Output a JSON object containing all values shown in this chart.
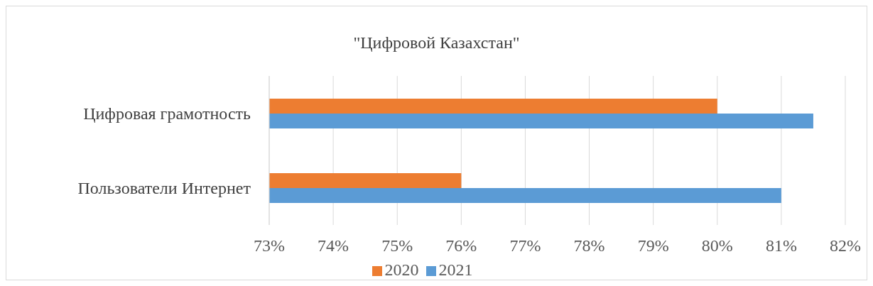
{
  "chart_data": {
    "type": "bar",
    "orientation": "horizontal",
    "title": "\"Цифровой Казахстан\"",
    "categories": [
      "Цифровая грамотность",
      "Пользователи Интернет"
    ],
    "series": [
      {
        "name": "2020",
        "color": "#ed7d31",
        "values": [
          80,
          76
        ]
      },
      {
        "name": "2021",
        "color": "#5b9bd5",
        "values": [
          81.5,
          81
        ]
      }
    ],
    "xlim": [
      73,
      82
    ],
    "xticks": [
      {
        "value": 73,
        "label": "73%"
      },
      {
        "value": 74,
        "label": "74%"
      },
      {
        "value": 75,
        "label": "75%"
      },
      {
        "value": 76,
        "label": "76%"
      },
      {
        "value": 77,
        "label": "77%"
      },
      {
        "value": 78,
        "label": "78%"
      },
      {
        "value": 79,
        "label": "79%"
      },
      {
        "value": 80,
        "label": "80%"
      },
      {
        "value": 81,
        "label": "81%"
      },
      {
        "value": 82,
        "label": "82%"
      }
    ],
    "grid": "x",
    "legend": "bottom"
  }
}
